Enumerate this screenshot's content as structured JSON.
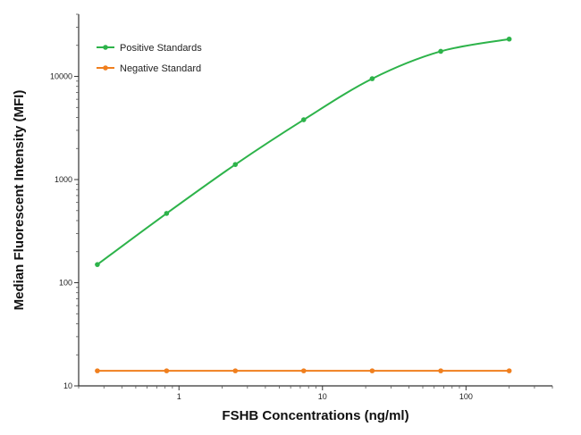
{
  "chart_data": {
    "type": "line",
    "xlabel": "FSHB Concentrations (ng/ml)",
    "ylabel": "Median  Fluorescent Intensity  (MFI)",
    "xscale": "log",
    "yscale": "log",
    "xlim": [
      0.2,
      400
    ],
    "ylim": [
      10,
      40000
    ],
    "x_ticks": [
      1,
      10,
      100
    ],
    "x_tick_labels": [
      "1",
      "10",
      "100"
    ],
    "y_ticks": [
      10,
      100,
      1000,
      10000
    ],
    "y_tick_labels": [
      "10",
      "100",
      "1000",
      "10000"
    ],
    "grid": false,
    "legend_position": "top-left",
    "series": [
      {
        "name": "Positive Standards",
        "color": "#2db34a",
        "x": [
          0.27,
          0.82,
          2.47,
          7.4,
          22.2,
          66.7,
          200
        ],
        "y": [
          150,
          470,
          1400,
          3800,
          9500,
          17500,
          23000
        ]
      },
      {
        "name": "Negative Standard",
        "color": "#f07f1e",
        "x": [
          0.27,
          0.82,
          2.47,
          7.4,
          22.2,
          66.7,
          200
        ],
        "y": [
          14,
          14,
          14,
          14,
          14,
          14,
          14
        ]
      }
    ]
  }
}
